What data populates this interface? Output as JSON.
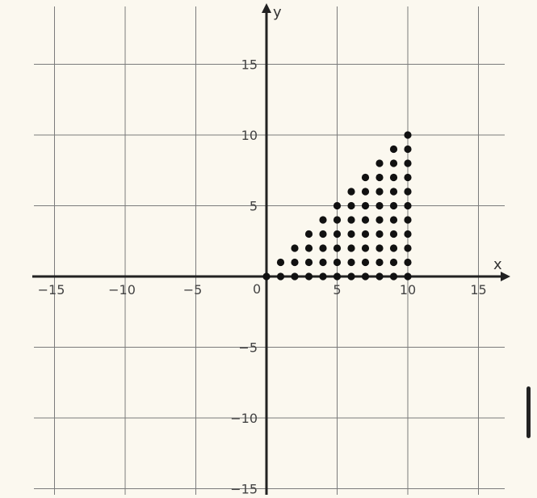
{
  "chart_data": {
    "type": "scatter",
    "title": "",
    "xlabel": "x",
    "ylabel": "y",
    "xlim": [
      -16.5,
      17
    ],
    "ylim": [
      -15,
      19.5
    ],
    "xticks": [
      -15,
      -10,
      -5,
      5,
      10,
      15
    ],
    "yticks": [
      -15,
      -10,
      -5,
      5,
      10,
      15
    ],
    "xtick_labels": [
      "−15",
      "−10",
      "−5",
      "5",
      "10",
      "15"
    ],
    "ytick_labels": [
      "−15",
      "−10",
      "−5",
      "5",
      "10",
      "15"
    ],
    "origin_label": "0",
    "grid": true,
    "grid_step": 5,
    "point_rule": "integer points (x, y) with 0 ≤ y ≤ x ≤ 10",
    "colors": {
      "background": "#fbf8ef",
      "grid": "#7b7b7b",
      "axes": "#222222",
      "points": "#111111"
    }
  },
  "ui": {
    "scrollbar": "vertical-scrollbar-thumb"
  }
}
